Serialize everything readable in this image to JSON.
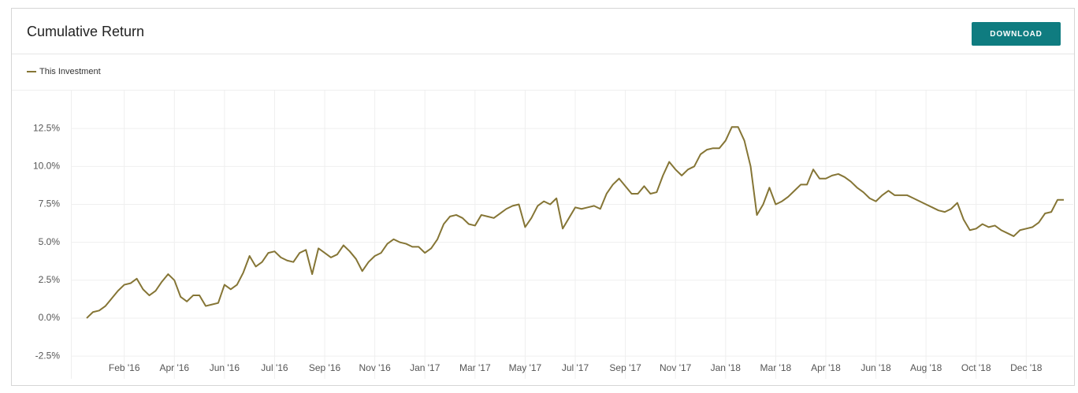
{
  "button_label": "DOWNLOAD",
  "chart_data": {
    "type": "line",
    "title": "Cumulative Return",
    "categories": [
      null,
      null,
      null,
      null,
      null,
      null,
      "Feb '16",
      null,
      null,
      null,
      null,
      null,
      null,
      null,
      "Apr '16",
      null,
      null,
      null,
      null,
      null,
      null,
      null,
      "Jun '16",
      null,
      null,
      null,
      null,
      null,
      null,
      null,
      "Jul '16",
      null,
      null,
      null,
      null,
      null,
      null,
      null,
      "Sep '16",
      null,
      null,
      null,
      null,
      null,
      null,
      null,
      "Nov '16",
      null,
      null,
      null,
      null,
      null,
      null,
      null,
      "Jan '17",
      null,
      null,
      null,
      null,
      null,
      null,
      null,
      "Mar '17",
      null,
      null,
      null,
      null,
      null,
      null,
      null,
      "May '17",
      null,
      null,
      null,
      null,
      null,
      null,
      null,
      "Jul '17",
      null,
      null,
      null,
      null,
      null,
      null,
      null,
      "Sep '17",
      null,
      null,
      null,
      null,
      null,
      null,
      null,
      "Nov '17",
      null,
      null,
      null,
      null,
      null,
      null,
      null,
      "Jan '18",
      null,
      null,
      null,
      null,
      null,
      null,
      null,
      "Mar '18",
      null,
      null,
      null,
      null,
      null,
      null,
      null,
      "Apr '18",
      null,
      null,
      null,
      null,
      null,
      null,
      null,
      "Jun '18",
      null,
      null,
      null,
      null,
      null,
      null,
      null,
      "Aug '18",
      null,
      null,
      null,
      null,
      null,
      null,
      null,
      "Oct '18",
      null,
      null,
      null,
      null,
      null,
      null,
      null,
      "Dec '18",
      null,
      null,
      null,
      null,
      null,
      null
    ],
    "series": [
      {
        "name": "This Investment",
        "color": "#857535",
        "values": [
          0.0,
          0.4,
          0.5,
          0.8,
          1.3,
          1.8,
          2.2,
          2.3,
          2.6,
          1.9,
          1.5,
          1.8,
          2.4,
          2.9,
          2.5,
          1.4,
          1.1,
          1.5,
          1.5,
          0.8,
          0.9,
          1.0,
          2.2,
          1.9,
          2.2,
          3.0,
          4.1,
          3.4,
          3.7,
          4.3,
          4.4,
          4.0,
          3.8,
          3.7,
          4.3,
          4.5,
          2.9,
          4.6,
          4.3,
          4.0,
          4.2,
          4.8,
          4.4,
          3.9,
          3.1,
          3.7,
          4.1,
          4.3,
          4.9,
          5.2,
          5.0,
          4.9,
          4.7,
          4.7,
          4.3,
          4.6,
          5.2,
          6.2,
          6.7,
          6.8,
          6.6,
          6.2,
          6.1,
          6.8,
          6.7,
          6.6,
          6.9,
          7.2,
          7.4,
          7.5,
          6.0,
          6.6,
          7.4,
          7.7,
          7.5,
          7.9,
          5.9,
          6.6,
          7.3,
          7.2,
          7.3,
          7.4,
          7.2,
          8.2,
          8.8,
          9.2,
          8.7,
          8.2,
          8.2,
          8.7,
          8.2,
          8.3,
          9.4,
          10.3,
          9.8,
          9.4,
          9.8,
          10.0,
          10.8,
          11.1,
          11.2,
          11.2,
          11.7,
          12.6,
          12.6,
          11.7,
          10.0,
          6.8,
          7.5,
          8.6,
          7.5,
          7.7,
          8.0,
          8.4,
          8.8,
          8.8,
          9.8,
          9.2,
          9.2,
          9.4,
          9.5,
          9.3,
          9.0,
          8.6,
          8.3,
          7.9,
          7.7,
          8.1,
          8.4,
          8.1,
          8.1,
          8.1,
          7.9,
          7.7,
          7.5,
          7.3,
          7.1,
          7.0,
          7.2,
          7.6,
          6.5,
          5.8,
          5.9,
          6.2,
          6.0,
          6.1,
          5.8,
          5.6,
          5.4,
          5.8,
          5.9,
          6.0,
          6.3,
          6.9,
          7.0,
          7.8,
          7.8
        ]
      }
    ],
    "ylim": [
      -4,
      15
    ],
    "yticks": [
      {
        "value": -2.5,
        "label": "-2.5%"
      },
      {
        "value": 0,
        "label": "0.0%"
      },
      {
        "value": 2.5,
        "label": "2.5%"
      },
      {
        "value": 5,
        "label": "5.0%"
      },
      {
        "value": 7.5,
        "label": "7.5%"
      },
      {
        "value": 10,
        "label": "10.0%"
      },
      {
        "value": 12.5,
        "label": "12.5%"
      }
    ],
    "grid": true,
    "legend": "top-left"
  }
}
